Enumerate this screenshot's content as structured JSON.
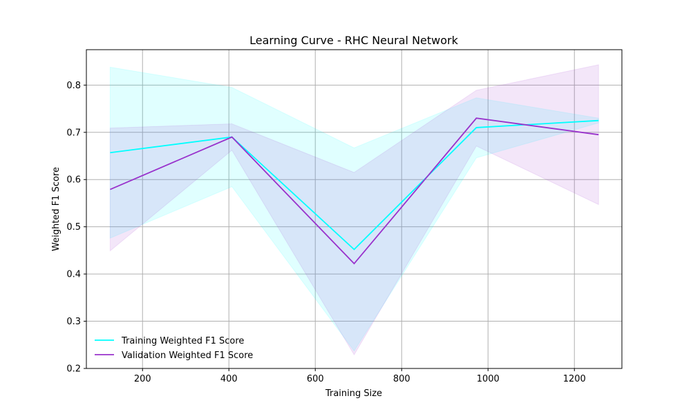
{
  "chart_data": {
    "type": "line",
    "title": "Learning Curve - RHC Neural Network",
    "xlabel": "Training Size",
    "ylabel": "Weighted F1 Score",
    "xlim": [
      70,
      1310
    ],
    "ylim": [
      0.2,
      0.875
    ],
    "xticks": [
      200,
      400,
      600,
      800,
      1000,
      1200
    ],
    "yticks": [
      0.2,
      0.3,
      0.4,
      0.5,
      0.6,
      0.7,
      0.8
    ],
    "grid": true,
    "legend_position": "lower-left",
    "x": [
      125,
      407,
      690,
      973,
      1256
    ],
    "series": [
      {
        "name": "Training Weighted F1 Score",
        "color": "#00ffff",
        "band_color": "#e0ffff",
        "values": [
          0.657,
          0.69,
          0.452,
          0.71,
          0.725
        ],
        "lower": [
          0.476,
          0.585,
          0.237,
          0.646,
          0.72
        ],
        "upper": [
          0.838,
          0.795,
          0.667,
          0.773,
          0.73
        ]
      },
      {
        "name": "Validation Weighted F1 Score",
        "color": "#9932cc",
        "band_color": "#f2e1f8",
        "values": [
          0.579,
          0.69,
          0.422,
          0.73,
          0.695
        ],
        "lower": [
          0.449,
          0.662,
          0.229,
          0.671,
          0.547
        ],
        "upper": [
          0.709,
          0.718,
          0.615,
          0.789,
          0.843
        ]
      }
    ]
  }
}
